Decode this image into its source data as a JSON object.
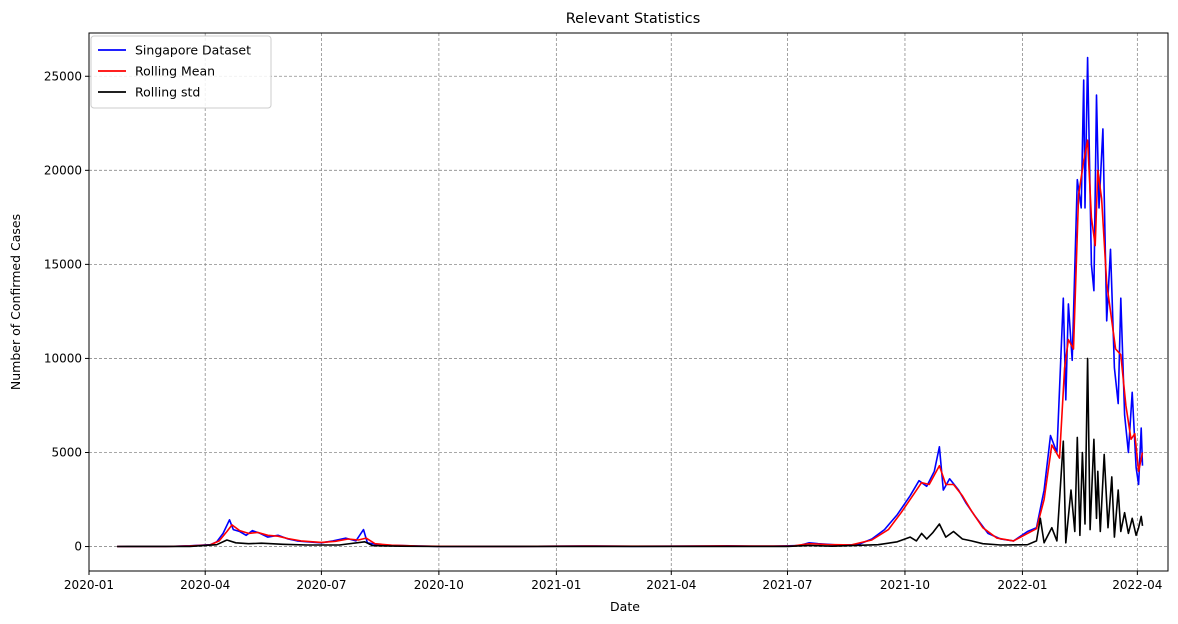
{
  "chart_data": {
    "type": "line",
    "title": "Relevant Statistics",
    "xlabel": "Date",
    "ylabel": "Number of Confirmed Cases",
    "xlim": [
      "2020-01-01",
      "2022-04-25"
    ],
    "ylim": [
      -1300,
      27300
    ],
    "grid": true,
    "legend_position": "top-left",
    "x_ticks": [
      "2020-01",
      "2020-04",
      "2020-07",
      "2020-10",
      "2021-01",
      "2021-04",
      "2021-07",
      "2021-10",
      "2022-01",
      "2022-04"
    ],
    "y_ticks": [
      0,
      5000,
      10000,
      15000,
      20000,
      25000
    ],
    "series": [
      {
        "name": "Singapore Dataset",
        "color": "#0000ff",
        "points": [
          [
            "2020-01-23",
            1
          ],
          [
            "2020-02-10",
            3
          ],
          [
            "2020-03-01",
            5
          ],
          [
            "2020-03-20",
            40
          ],
          [
            "2020-04-05",
            100
          ],
          [
            "2020-04-10",
            250
          ],
          [
            "2020-04-15",
            700
          ],
          [
            "2020-04-20",
            1420
          ],
          [
            "2020-04-23",
            900
          ],
          [
            "2020-04-28",
            800
          ],
          [
            "2020-05-03",
            600
          ],
          [
            "2020-05-08",
            850
          ],
          [
            "2020-05-14",
            700
          ],
          [
            "2020-05-20",
            500
          ],
          [
            "2020-05-28",
            600
          ],
          [
            "2020-06-05",
            400
          ],
          [
            "2020-06-12",
            300
          ],
          [
            "2020-06-20",
            250
          ],
          [
            "2020-07-01",
            200
          ],
          [
            "2020-07-10",
            300
          ],
          [
            "2020-07-20",
            450
          ],
          [
            "2020-07-28",
            300
          ],
          [
            "2020-08-03",
            900
          ],
          [
            "2020-08-06",
            200
          ],
          [
            "2020-08-15",
            80
          ],
          [
            "2020-09-01",
            50
          ],
          [
            "2020-09-15",
            30
          ],
          [
            "2020-10-01",
            10
          ],
          [
            "2020-11-01",
            10
          ],
          [
            "2020-12-01",
            10
          ],
          [
            "2021-01-01",
            20
          ],
          [
            "2021-01-20",
            30
          ],
          [
            "2021-02-01",
            25
          ],
          [
            "2021-03-01",
            15
          ],
          [
            "2021-04-01",
            20
          ],
          [
            "2021-05-01",
            30
          ],
          [
            "2021-05-15",
            40
          ],
          [
            "2021-06-01",
            20
          ],
          [
            "2021-06-20",
            20
          ],
          [
            "2021-07-10",
            50
          ],
          [
            "2021-07-18",
            200
          ],
          [
            "2021-07-25",
            150
          ],
          [
            "2021-08-10",
            80
          ],
          [
            "2021-08-25",
            100
          ],
          [
            "2021-09-05",
            400
          ],
          [
            "2021-09-15",
            900
          ],
          [
            "2021-09-25",
            1700
          ],
          [
            "2021-10-05",
            2700
          ],
          [
            "2021-10-12",
            3500
          ],
          [
            "2021-10-18",
            3200
          ],
          [
            "2021-10-24",
            4000
          ],
          [
            "2021-10-28",
            5300
          ],
          [
            "2021-10-31",
            3000
          ],
          [
            "2021-11-05",
            3600
          ],
          [
            "2021-11-12",
            3000
          ],
          [
            "2021-11-18",
            2300
          ],
          [
            "2021-11-25",
            1600
          ],
          [
            "2021-12-05",
            700
          ],
          [
            "2021-12-15",
            400
          ],
          [
            "2021-12-25",
            300
          ],
          [
            "2022-01-05",
            800
          ],
          [
            "2022-01-12",
            1000
          ],
          [
            "2022-01-18",
            3000
          ],
          [
            "2022-01-23",
            5900
          ],
          [
            "2022-01-28",
            5000
          ],
          [
            "2022-02-02",
            13200
          ],
          [
            "2022-02-04",
            7800
          ],
          [
            "2022-02-06",
            12900
          ],
          [
            "2022-02-09",
            9900
          ],
          [
            "2022-02-13",
            19500
          ],
          [
            "2022-02-16",
            18000
          ],
          [
            "2022-02-18",
            24800
          ],
          [
            "2022-02-19",
            18000
          ],
          [
            "2022-02-21",
            26000
          ],
          [
            "2022-02-24",
            15000
          ],
          [
            "2022-02-26",
            13600
          ],
          [
            "2022-02-28",
            24000
          ],
          [
            "2022-03-02",
            18000
          ],
          [
            "2022-03-05",
            22200
          ],
          [
            "2022-03-08",
            12000
          ],
          [
            "2022-03-11",
            15800
          ],
          [
            "2022-03-14",
            9500
          ],
          [
            "2022-03-17",
            7600
          ],
          [
            "2022-03-19",
            13200
          ],
          [
            "2022-03-22",
            7000
          ],
          [
            "2022-03-25",
            5000
          ],
          [
            "2022-03-28",
            8200
          ],
          [
            "2022-03-31",
            4200
          ],
          [
            "2022-04-02",
            3300
          ],
          [
            "2022-04-04",
            6300
          ],
          [
            "2022-04-05",
            4300
          ]
        ]
      },
      {
        "name": "Rolling Mean",
        "color": "#ff0000",
        "points": [
          [
            "2020-01-23",
            1
          ],
          [
            "2020-02-10",
            3
          ],
          [
            "2020-03-01",
            5
          ],
          [
            "2020-03-20",
            35
          ],
          [
            "2020-04-05",
            90
          ],
          [
            "2020-04-12",
            300
          ],
          [
            "2020-04-18",
            800
          ],
          [
            "2020-04-22",
            1150
          ],
          [
            "2020-04-28",
            850
          ],
          [
            "2020-05-05",
            700
          ],
          [
            "2020-05-12",
            750
          ],
          [
            "2020-05-20",
            600
          ],
          [
            "2020-05-28",
            550
          ],
          [
            "2020-06-05",
            420
          ],
          [
            "2020-06-15",
            300
          ],
          [
            "2020-07-01",
            220
          ],
          [
            "2020-07-12",
            280
          ],
          [
            "2020-07-22",
            400
          ],
          [
            "2020-07-30",
            350
          ],
          [
            "2020-08-05",
            450
          ],
          [
            "2020-08-12",
            150
          ],
          [
            "2020-08-25",
            70
          ],
          [
            "2020-09-15",
            30
          ],
          [
            "2020-10-01",
            15
          ],
          [
            "2020-11-01",
            10
          ],
          [
            "2020-12-01",
            10
          ],
          [
            "2021-01-01",
            20
          ],
          [
            "2021-01-25",
            25
          ],
          [
            "2021-03-01",
            18
          ],
          [
            "2021-04-01",
            20
          ],
          [
            "2021-05-10",
            35
          ],
          [
            "2021-06-05",
            22
          ],
          [
            "2021-07-05",
            30
          ],
          [
            "2021-07-18",
            150
          ],
          [
            "2021-08-01",
            110
          ],
          [
            "2021-08-20",
            90
          ],
          [
            "2021-09-05",
            350
          ],
          [
            "2021-09-18",
            900
          ],
          [
            "2021-09-28",
            1800
          ],
          [
            "2021-10-08",
            2800
          ],
          [
            "2021-10-14",
            3400
          ],
          [
            "2021-10-20",
            3300
          ],
          [
            "2021-10-28",
            4300
          ],
          [
            "2021-11-02",
            3300
          ],
          [
            "2021-11-08",
            3300
          ],
          [
            "2021-11-15",
            2700
          ],
          [
            "2021-11-22",
            1900
          ],
          [
            "2021-12-01",
            1000
          ],
          [
            "2021-12-12",
            450
          ],
          [
            "2021-12-25",
            300
          ],
          [
            "2022-01-05",
            700
          ],
          [
            "2022-01-12",
            950
          ],
          [
            "2022-01-18",
            2500
          ],
          [
            "2022-01-24",
            5400
          ],
          [
            "2022-01-30",
            4700
          ],
          [
            "2022-02-03",
            9500
          ],
          [
            "2022-02-06",
            11000
          ],
          [
            "2022-02-10",
            10500
          ],
          [
            "2022-02-14",
            18700
          ],
          [
            "2022-02-18",
            20500
          ],
          [
            "2022-02-21",
            21600
          ],
          [
            "2022-02-24",
            17500
          ],
          [
            "2022-02-27",
            16000
          ],
          [
            "2022-03-01",
            20000
          ],
          [
            "2022-03-04",
            18500
          ],
          [
            "2022-03-08",
            14000
          ],
          [
            "2022-03-11",
            12500
          ],
          [
            "2022-03-15",
            10500
          ],
          [
            "2022-03-19",
            10200
          ],
          [
            "2022-03-23",
            7500
          ],
          [
            "2022-03-27",
            5700
          ],
          [
            "2022-03-30",
            6000
          ],
          [
            "2022-04-02",
            4000
          ],
          [
            "2022-04-05",
            5000
          ]
        ]
      },
      {
        "name": "Rolling std",
        "color": "#000000",
        "points": [
          [
            "2020-01-23",
            0
          ],
          [
            "2020-03-20",
            10
          ],
          [
            "2020-04-10",
            100
          ],
          [
            "2020-04-18",
            350
          ],
          [
            "2020-04-25",
            200
          ],
          [
            "2020-05-05",
            150
          ],
          [
            "2020-05-15",
            180
          ],
          [
            "2020-06-01",
            120
          ],
          [
            "2020-06-20",
            80
          ],
          [
            "2020-07-15",
            80
          ],
          [
            "2020-08-04",
            250
          ],
          [
            "2020-08-10",
            50
          ],
          [
            "2020-09-01",
            20
          ],
          [
            "2020-10-01",
            5
          ],
          [
            "2021-01-01",
            8
          ],
          [
            "2021-04-01",
            8
          ],
          [
            "2021-07-01",
            10
          ],
          [
            "2021-07-18",
            60
          ],
          [
            "2021-08-05",
            20
          ],
          [
            "2021-09-10",
            100
          ],
          [
            "2021-09-25",
            250
          ],
          [
            "2021-10-05",
            500
          ],
          [
            "2021-10-10",
            300
          ],
          [
            "2021-10-14",
            700
          ],
          [
            "2021-10-18",
            400
          ],
          [
            "2021-10-23",
            750
          ],
          [
            "2021-10-28",
            1200
          ],
          [
            "2021-11-02",
            500
          ],
          [
            "2021-11-08",
            800
          ],
          [
            "2021-11-15",
            400
          ],
          [
            "2021-11-22",
            300
          ],
          [
            "2021-12-01",
            150
          ],
          [
            "2021-12-15",
            80
          ],
          [
            "2022-01-05",
            100
          ],
          [
            "2022-01-12",
            300
          ],
          [
            "2022-01-15",
            1500
          ],
          [
            "2022-01-18",
            200
          ],
          [
            "2022-01-24",
            1000
          ],
          [
            "2022-01-28",
            300
          ],
          [
            "2022-02-02",
            5600
          ],
          [
            "2022-02-04",
            200
          ],
          [
            "2022-02-08",
            3000
          ],
          [
            "2022-02-11",
            800
          ],
          [
            "2022-02-13",
            5800
          ],
          [
            "2022-02-15",
            600
          ],
          [
            "2022-02-17",
            5000
          ],
          [
            "2022-02-19",
            1200
          ],
          [
            "2022-02-21",
            10000
          ],
          [
            "2022-02-23",
            900
          ],
          [
            "2022-02-26",
            5700
          ],
          [
            "2022-02-28",
            1500
          ],
          [
            "2022-03-01",
            4000
          ],
          [
            "2022-03-03",
            800
          ],
          [
            "2022-03-06",
            4900
          ],
          [
            "2022-03-09",
            1000
          ],
          [
            "2022-03-12",
            3700
          ],
          [
            "2022-03-14",
            500
          ],
          [
            "2022-03-17",
            3000
          ],
          [
            "2022-03-19",
            800
          ],
          [
            "2022-03-22",
            1800
          ],
          [
            "2022-03-25",
            700
          ],
          [
            "2022-03-28",
            1500
          ],
          [
            "2022-03-31",
            600
          ],
          [
            "2022-04-02",
            1000
          ],
          [
            "2022-04-04",
            1600
          ],
          [
            "2022-04-05",
            1100
          ]
        ]
      }
    ]
  }
}
